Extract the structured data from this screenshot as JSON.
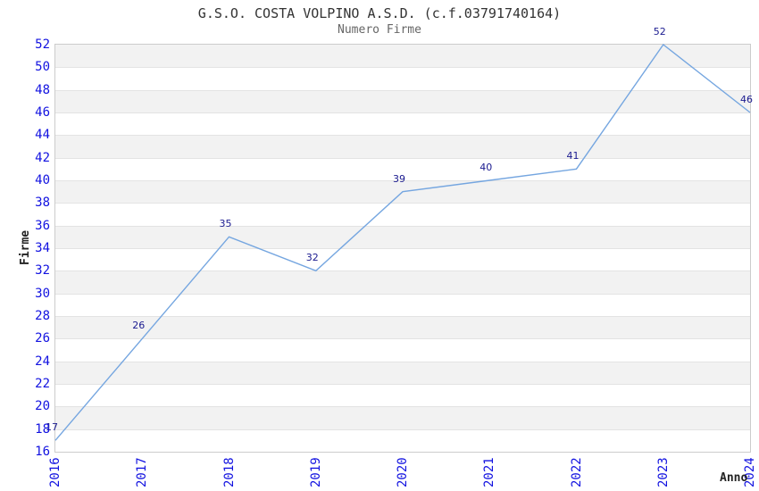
{
  "title": "G.S.O. COSTA VOLPINO A.S.D. (c.f.03791740164)",
  "subtitle": "Numero Firme",
  "chart_data": {
    "type": "line",
    "x": [
      "2016",
      "2017",
      "2018",
      "2019",
      "2020",
      "2021",
      "2022",
      "2023",
      "2024"
    ],
    "series": [
      {
        "name": "Numero Firme",
        "values": [
          17,
          26,
          35,
          32,
          39,
          40,
          41,
          52,
          46
        ]
      }
    ],
    "title": "G.S.O. COSTA VOLPINO A.S.D. (c.f.03791740164)",
    "subtitle": "Numero Firme",
    "xlabel": "Anno",
    "ylabel": "Firme",
    "ylim": [
      16,
      52
    ],
    "ytick_step": 2,
    "x_tick_rotation": -90,
    "grid": "alternating-horizontal-bands",
    "legend_position": "none",
    "data_labels": true
  },
  "colors": {
    "line": "#75a6e0",
    "tick_label": "#1212e0",
    "data_label": "#1a1a8f",
    "band_gray": "#f2f2f2",
    "band_white": "#ffffff",
    "grid_line": "#e3e3e3",
    "plot_border": "#cccccc",
    "title": "#333333",
    "subtitle": "#666666",
    "axis_title": "#222222"
  }
}
